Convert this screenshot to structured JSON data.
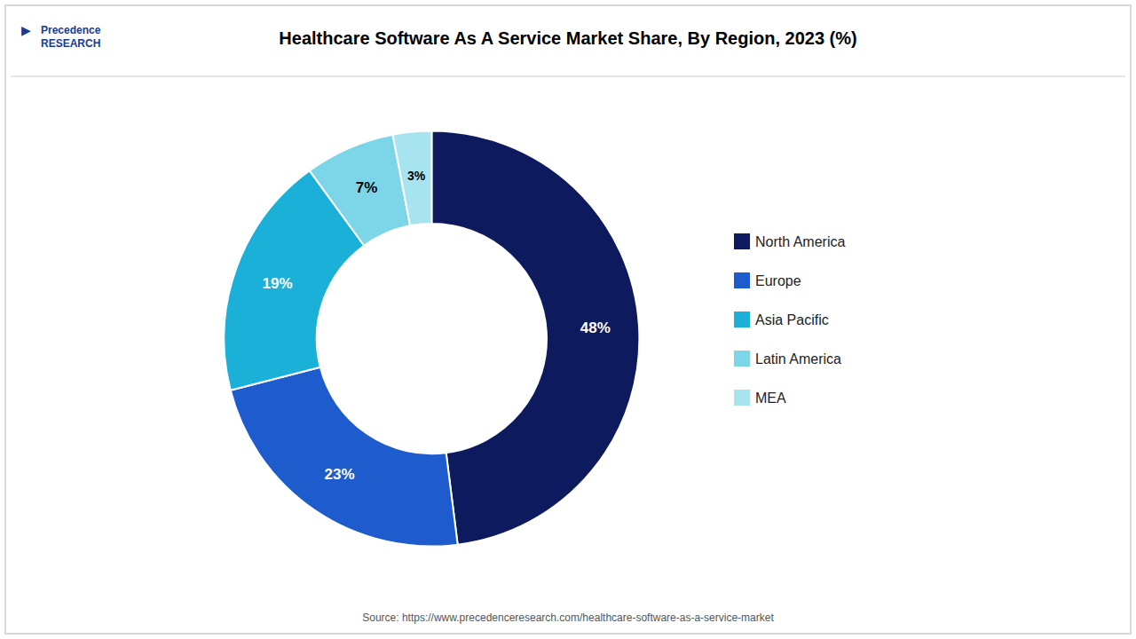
{
  "chart_data": {
    "type": "pie",
    "title": "Healthcare Software As A Service Market Share, By Region, 2023 (%)",
    "categories": [
      "North America",
      "Europe",
      "Asia Pacific",
      "Latin America",
      "MEA"
    ],
    "values": [
      48,
      23,
      19,
      7,
      3
    ],
    "value_labels": [
      "48%",
      "23%",
      "19%",
      "7%",
      "3%"
    ],
    "colors": [
      "#0d1b5e",
      "#1e5ccd",
      "#1ab0d8",
      "#7dd6e8",
      "#a8e4f0"
    ],
    "data_labels": true,
    "legend": "right",
    "annotations": [
      "Source: https://www.precedenceresearch.com/healthcare-software-as-a-service-market",
      "Precedence\nRESEARCH",
      "▶"
    ]
  }
}
